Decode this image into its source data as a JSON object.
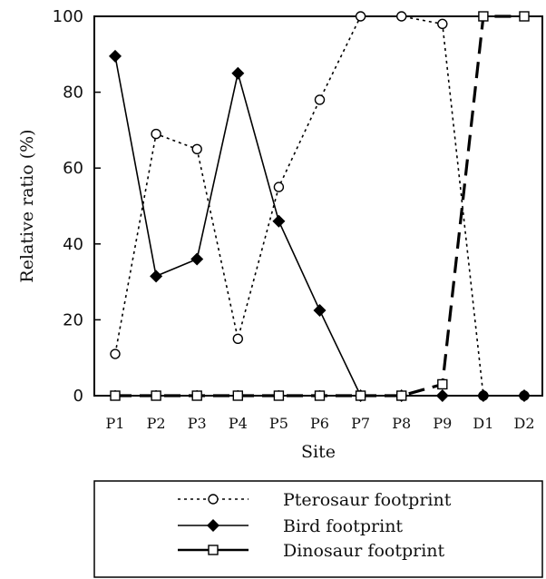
{
  "chart_data": {
    "type": "line",
    "categories": [
      "P1",
      "P2",
      "P3",
      "P4",
      "P5",
      "P6",
      "P7",
      "P8",
      "P9",
      "D1",
      "D2"
    ],
    "xlabel": "Site",
    "ylabel": "Relative ratio (%)",
    "ylim": [
      0,
      100
    ],
    "yticks": [
      0,
      20,
      40,
      60,
      80,
      100
    ],
    "grid": false,
    "legend_position": "bottom",
    "series": [
      {
        "name": "Pterosaur footprint",
        "values": [
          11,
          69,
          65,
          15,
          55,
          78,
          100,
          100,
          98,
          0,
          0
        ]
      },
      {
        "name": "Bird footprint",
        "values": [
          89.5,
          31.5,
          36,
          85,
          46,
          22.5,
          0,
          0,
          0,
          0,
          0
        ]
      },
      {
        "name": "Dinosaur footprint",
        "values": [
          0,
          0,
          0,
          0,
          0,
          0,
          0,
          0,
          3,
          100,
          100
        ]
      }
    ]
  }
}
